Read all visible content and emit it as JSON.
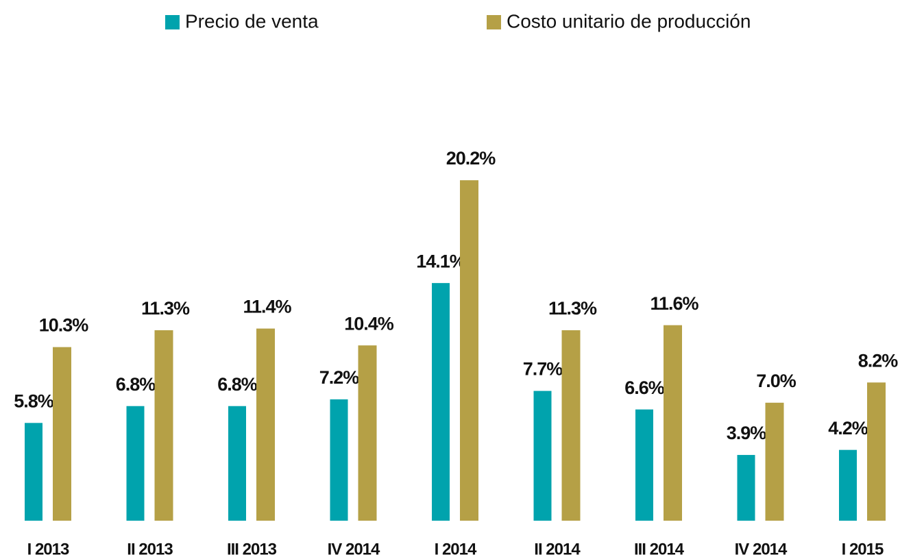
{
  "chart_data": {
    "type": "bar",
    "categories": [
      "I 2013",
      "II 2013",
      "III 2013",
      "IV 2014",
      "I 2014",
      "II 2014",
      "III 2014",
      "IV 2014",
      "I 2015"
    ],
    "series": [
      {
        "name": "Precio de venta",
        "color": "#00a3ad",
        "values": [
          5.8,
          6.8,
          6.8,
          7.2,
          14.1,
          7.7,
          6.6,
          3.9,
          4.2
        ],
        "value_labels": [
          "5.8%",
          "6.8%",
          "6.8%",
          "7.2%",
          "14.1%",
          "7.7%",
          "6.6%",
          "3.9%",
          "4.2%"
        ]
      },
      {
        "name": "Costo unitario de producción",
        "color": "#b5a046",
        "values": [
          10.3,
          11.3,
          11.4,
          10.4,
          20.2,
          11.3,
          11.6,
          7.0,
          8.2
        ],
        "value_labels": [
          "10.3%",
          "11.3%",
          "11.4%",
          "10.4%",
          "20.2%",
          "11.3%",
          "11.6%",
          "7.0%",
          "8.2%"
        ]
      }
    ],
    "legend": "top"
  }
}
